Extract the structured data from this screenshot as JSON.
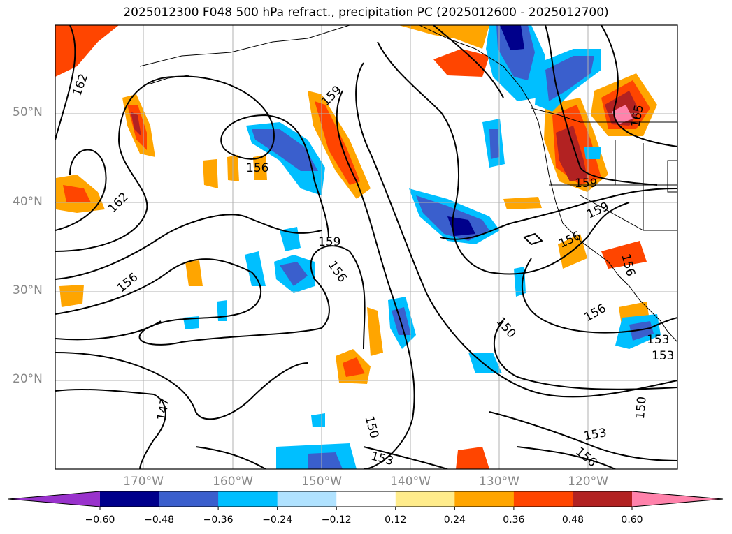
{
  "title": "2025012300 F048 500 hPa refract., precipitation PC (2025012600 - 2025012700)",
  "map": {
    "lat_labels": [
      "50°N",
      "40°N",
      "30°N",
      "20°N"
    ],
    "lon_labels": [
      "170°W",
      "160°W",
      "150°W",
      "140°W",
      "130°W",
      "120°W"
    ],
    "lon_range": [
      -180,
      -110
    ],
    "lat_range": [
      10,
      60
    ],
    "grid": true,
    "contour_labels": [
      "162",
      "159",
      "156",
      "162",
      "159",
      "156",
      "156",
      "159",
      "159",
      "156",
      "156",
      "153",
      "156",
      "150",
      "153",
      "147",
      "150",
      "153",
      "150",
      "153",
      "156",
      "165"
    ]
  },
  "colorbar": {
    "ticks": [
      "−0.60",
      "−0.48",
      "−0.36",
      "−0.24",
      "−0.12",
      "0.12",
      "0.24",
      "0.36",
      "0.48",
      "0.60"
    ],
    "colors": [
      "#9932cc",
      "#00008b",
      "#3a5fcd",
      "#00bfff",
      "#b0e2ff",
      "#ffffff",
      "#ffec8b",
      "#ffa500",
      "#ff4500",
      "#b22222",
      "#ff82ab"
    ],
    "extend": "both"
  }
}
